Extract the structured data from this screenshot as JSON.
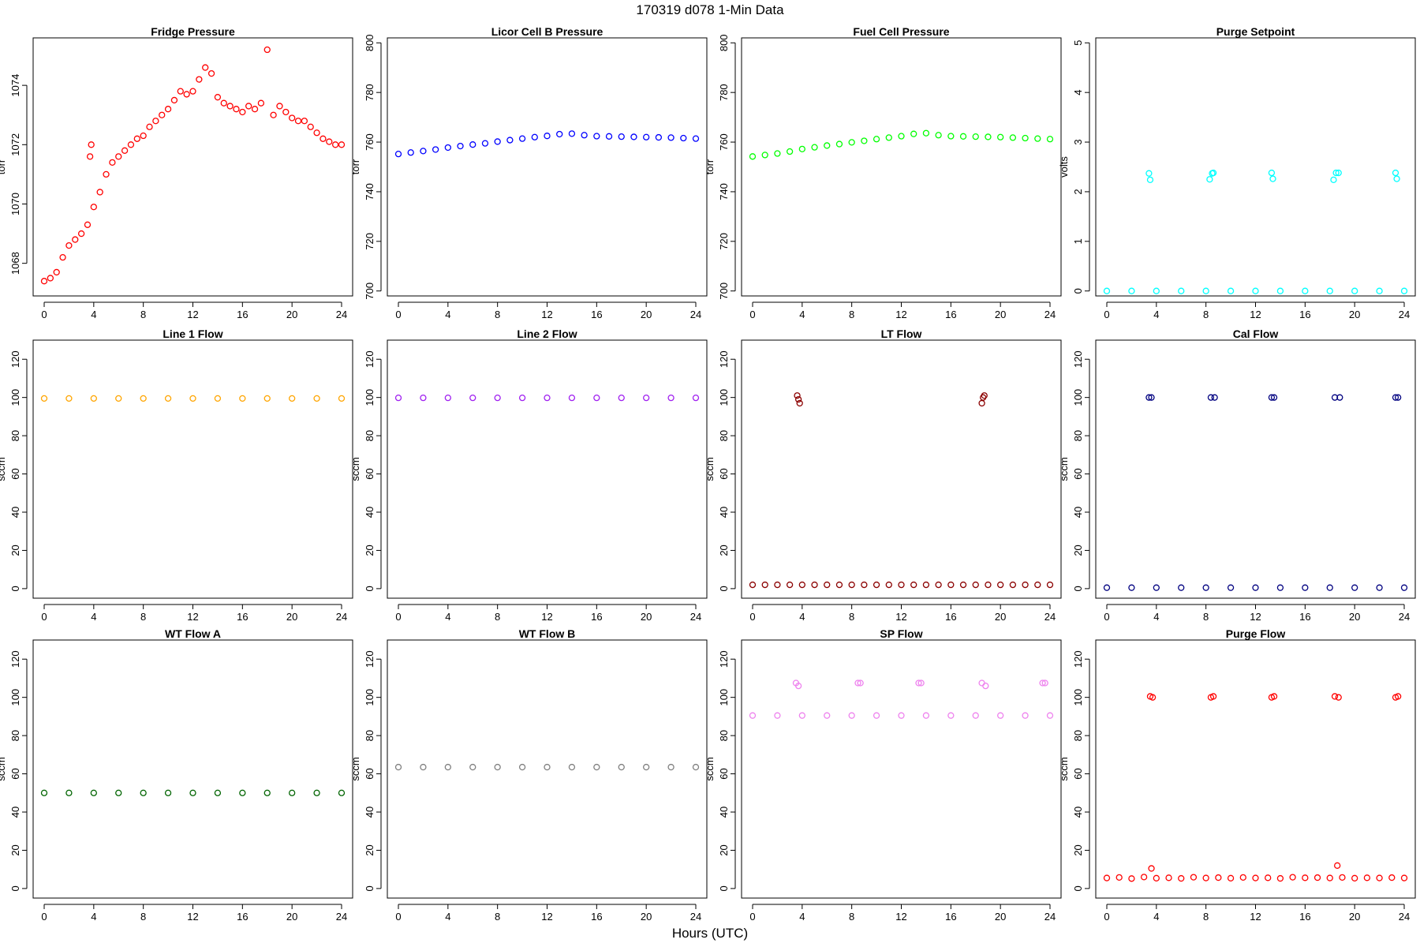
{
  "figure": {
    "title": "170319    d078    1-Min Data",
    "xlabel": "Hours (UTC)"
  },
  "chart_data": [
    {
      "type": "scatter",
      "title": "Fridge Pressure",
      "ylabel": "torr",
      "color": "#ff0000",
      "marker": "open-circle",
      "xlim": [
        0,
        24
      ],
      "ylim": [
        1066.9,
        1075.6
      ],
      "xticks": [
        0,
        4,
        8,
        12,
        16,
        20,
        24
      ],
      "yticks": [
        1068,
        1070,
        1072,
        1074
      ],
      "series": [
        {
          "x": [
            0,
            0.5,
            1,
            1.5,
            2,
            2.5,
            3,
            3.5,
            3.7,
            3.8,
            4,
            4.5,
            5,
            5.5,
            6,
            6.5,
            7,
            7.5,
            8,
            8.5,
            9,
            9.5,
            10,
            10.5,
            11,
            11.5,
            12,
            12.5,
            13,
            13.5,
            14,
            14.5,
            15,
            15.5,
            16,
            16.5,
            17,
            17.5,
            18,
            18.5,
            19,
            19.5,
            20,
            20.5,
            21,
            21.5,
            22,
            22.5,
            23,
            23.5,
            24
          ],
          "y": [
            1067.4,
            1067.5,
            1067.7,
            1068.2,
            1068.6,
            1068.8,
            1069.0,
            1069.3,
            1071.6,
            1072.0,
            1069.9,
            1070.4,
            1071.0,
            1071.4,
            1071.6,
            1071.8,
            1072.0,
            1072.2,
            1072.3,
            1072.6,
            1072.8,
            1073.0,
            1073.2,
            1073.5,
            1073.8,
            1073.7,
            1073.8,
            1074.2,
            1074.6,
            1074.4,
            1073.6,
            1073.4,
            1073.3,
            1073.2,
            1073.1,
            1073.3,
            1073.2,
            1073.4,
            1075.2,
            1073.0,
            1073.3,
            1073.1,
            1072.9,
            1072.8,
            1072.8,
            1072.6,
            1072.4,
            1072.2,
            1072.1,
            1072.0,
            1072.0
          ]
        }
      ]
    },
    {
      "type": "scatter",
      "title": "Licor Cell B Pressure",
      "ylabel": "torr",
      "color": "#0000ff",
      "marker": "open-circle",
      "xlim": [
        0,
        24
      ],
      "ylim": [
        698,
        802
      ],
      "xticks": [
        0,
        4,
        8,
        12,
        16,
        20,
        24
      ],
      "yticks": [
        700,
        720,
        740,
        760,
        780,
        800
      ],
      "series": [
        {
          "x": [
            0,
            1,
            2,
            3,
            4,
            5,
            6,
            7,
            8,
            9,
            10,
            11,
            12,
            13,
            14,
            15,
            16,
            17,
            18,
            19,
            20,
            21,
            22,
            23,
            24
          ],
          "y": [
            755.2,
            755.8,
            756.4,
            757.0,
            757.8,
            758.4,
            759.0,
            759.5,
            760.2,
            760.8,
            761.4,
            762.0,
            762.5,
            763.2,
            763.4,
            762.8,
            762.4,
            762.3,
            762.2,
            762.1,
            762.0,
            761.9,
            761.8,
            761.6,
            761.4
          ]
        }
      ]
    },
    {
      "type": "scatter",
      "title": "Fuel Cell Pressure",
      "ylabel": "torr",
      "color": "#00ff00",
      "marker": "open-circle",
      "xlim": [
        0,
        24
      ],
      "ylim": [
        698,
        802
      ],
      "xticks": [
        0,
        4,
        8,
        12,
        16,
        20,
        24
      ],
      "yticks": [
        700,
        720,
        740,
        760,
        780,
        800
      ],
      "series": [
        {
          "x": [
            0,
            1,
            2,
            3,
            4,
            5,
            6,
            7,
            8,
            9,
            10,
            11,
            12,
            13,
            14,
            15,
            16,
            17,
            18,
            19,
            20,
            21,
            22,
            23,
            24
          ],
          "y": [
            754.2,
            754.8,
            755.4,
            756.2,
            757.2,
            757.9,
            758.6,
            759.2,
            759.9,
            760.5,
            761.2,
            761.8,
            762.4,
            763.3,
            763.6,
            762.8,
            762.4,
            762.3,
            762.2,
            762.1,
            762.0,
            761.8,
            761.6,
            761.4,
            761.2
          ]
        }
      ]
    },
    {
      "type": "scatter",
      "title": "Purge Setpoint",
      "ylabel": "volts",
      "color": "#00ffff",
      "marker": "open-circle",
      "xlim": [
        0,
        24
      ],
      "ylim": [
        -0.1,
        5.1
      ],
      "xticks": [
        0,
        4,
        8,
        12,
        16,
        20,
        24
      ],
      "yticks": [
        0,
        1,
        2,
        3,
        4,
        5
      ],
      "series": [
        {
          "x": [
            0,
            2,
            4,
            6,
            8,
            10,
            12,
            14,
            16,
            18,
            20,
            22,
            24,
            3.4,
            3.5,
            8.3,
            8.5,
            8.6,
            13.3,
            13.4,
            18.3,
            18.5,
            18.7,
            23.3,
            23.4
          ],
          "y": [
            0,
            0,
            0,
            0,
            0,
            0,
            0,
            0,
            0,
            0,
            0,
            0,
            0,
            2.37,
            2.24,
            2.25,
            2.37,
            2.38,
            2.38,
            2.26,
            2.24,
            2.38,
            2.38,
            2.38,
            2.26
          ]
        }
      ]
    },
    {
      "type": "scatter",
      "title": "Line 1 Flow",
      "ylabel": "sccm",
      "color": "#ffa500",
      "marker": "open-circle",
      "xlim": [
        0,
        24
      ],
      "ylim": [
        -5,
        130
      ],
      "xticks": [
        0,
        4,
        8,
        12,
        16,
        20,
        24
      ],
      "yticks": [
        0,
        20,
        40,
        60,
        80,
        100,
        120
      ],
      "series": [
        {
          "x": [
            0,
            2,
            4,
            6,
            8,
            10,
            12,
            14,
            16,
            18,
            20,
            22,
            24
          ],
          "y": [
            99.5,
            99.5,
            99.5,
            99.5,
            99.5,
            99.5,
            99.5,
            99.5,
            99.5,
            99.5,
            99.5,
            99.5,
            99.5
          ]
        }
      ]
    },
    {
      "type": "scatter",
      "title": "Line 2 Flow",
      "ylabel": "sccm",
      "color": "#a020f0",
      "marker": "open-circle",
      "xlim": [
        0,
        24
      ],
      "ylim": [
        -5,
        130
      ],
      "xticks": [
        0,
        4,
        8,
        12,
        16,
        20,
        24
      ],
      "yticks": [
        0,
        20,
        40,
        60,
        80,
        100,
        120
      ],
      "series": [
        {
          "x": [
            0,
            2,
            4,
            6,
            8,
            10,
            12,
            14,
            16,
            18,
            20,
            22,
            24
          ],
          "y": [
            99.8,
            99.8,
            99.8,
            99.8,
            99.8,
            99.8,
            99.8,
            99.8,
            99.8,
            99.8,
            99.8,
            99.8,
            99.8
          ]
        }
      ]
    },
    {
      "type": "scatter",
      "title": "LT Flow",
      "ylabel": "sccm",
      "color": "#8b0000",
      "marker": "open-circle",
      "xlim": [
        0,
        24
      ],
      "ylim": [
        -5,
        130
      ],
      "xticks": [
        0,
        4,
        8,
        12,
        16,
        20,
        24
      ],
      "yticks": [
        0,
        20,
        40,
        60,
        80,
        100,
        120
      ],
      "series": [
        {
          "x": [
            0,
            1,
            2,
            3,
            4,
            5,
            6,
            7,
            8,
            9,
            10,
            11,
            12,
            13,
            14,
            15,
            16,
            17,
            18,
            19,
            20,
            21,
            22,
            23,
            24,
            3.6,
            3.7,
            3.8,
            18.5,
            18.6,
            18.7
          ],
          "y": [
            2,
            2,
            2,
            2,
            2,
            2,
            2,
            2,
            2,
            2,
            2,
            2,
            2,
            2,
            2,
            2,
            2,
            2,
            2,
            2,
            2,
            2,
            2,
            2,
            2,
            101,
            99,
            97,
            97,
            100,
            101
          ]
        }
      ]
    },
    {
      "type": "scatter",
      "title": "Cal Flow",
      "ylabel": "sccm",
      "color": "#000080",
      "marker": "open-circle",
      "xlim": [
        0,
        24
      ],
      "ylim": [
        -5,
        130
      ],
      "xticks": [
        0,
        4,
        8,
        12,
        16,
        20,
        24
      ],
      "yticks": [
        0,
        20,
        40,
        60,
        80,
        100,
        120
      ],
      "series": [
        {
          "x": [
            0,
            2,
            4,
            6,
            8,
            10,
            12,
            14,
            16,
            18,
            20,
            22,
            24,
            3.4,
            3.6,
            8.4,
            8.7,
            13.3,
            13.5,
            18.4,
            18.8,
            23.3,
            23.5
          ],
          "y": [
            0.5,
            0.5,
            0.5,
            0.5,
            0.5,
            0.5,
            0.5,
            0.5,
            0.5,
            0.5,
            0.5,
            0.5,
            0.5,
            100,
            100,
            100,
            100,
            100,
            100,
            100,
            100,
            100,
            100
          ]
        }
      ]
    },
    {
      "type": "scatter",
      "title": "WT Flow A",
      "ylabel": "sccm",
      "color": "#006400",
      "marker": "open-circle",
      "xlim": [
        0,
        24
      ],
      "ylim": [
        -5,
        130
      ],
      "xticks": [
        0,
        4,
        8,
        12,
        16,
        20,
        24
      ],
      "yticks": [
        0,
        20,
        40,
        60,
        80,
        100,
        120
      ],
      "series": [
        {
          "x": [
            0,
            2,
            4,
            6,
            8,
            10,
            12,
            14,
            16,
            18,
            20,
            22,
            24
          ],
          "y": [
            50,
            50,
            50,
            50,
            50,
            50,
            50,
            50,
            50,
            50,
            50,
            50,
            50
          ]
        }
      ]
    },
    {
      "type": "scatter",
      "title": "WT Flow B",
      "ylabel": "sccm",
      "color": "#808080",
      "marker": "open-circle",
      "xlim": [
        0,
        24
      ],
      "ylim": [
        -5,
        130
      ],
      "xticks": [
        0,
        4,
        8,
        12,
        16,
        20,
        24
      ],
      "yticks": [
        0,
        20,
        40,
        60,
        80,
        100,
        120
      ],
      "series": [
        {
          "x": [
            0,
            2,
            4,
            6,
            8,
            10,
            12,
            14,
            16,
            18,
            20,
            22,
            24
          ],
          "y": [
            63.5,
            63.5,
            63.5,
            63.5,
            63.5,
            63.5,
            63.5,
            63.5,
            63.5,
            63.5,
            63.5,
            63.5,
            63.5
          ]
        }
      ]
    },
    {
      "type": "scatter",
      "title": "SP Flow",
      "ylabel": "sccm",
      "color": "#ee82ee",
      "marker": "open-circle",
      "xlim": [
        0,
        24
      ],
      "ylim": [
        -5,
        130
      ],
      "xticks": [
        0,
        4,
        8,
        12,
        16,
        20,
        24
      ],
      "yticks": [
        0,
        20,
        40,
        60,
        80,
        100,
        120
      ],
      "series": [
        {
          "x": [
            0,
            2,
            4,
            6,
            8,
            10,
            12,
            14,
            16,
            18,
            20,
            22,
            24,
            3.5,
            3.7,
            8.5,
            8.7,
            13.4,
            13.6,
            18.5,
            18.8,
            23.4,
            23.6
          ],
          "y": [
            90.5,
            90.5,
            90.5,
            90.5,
            90.5,
            90.5,
            90.5,
            90.5,
            90.5,
            90.5,
            90.5,
            90.5,
            90.5,
            107.5,
            106,
            107.5,
            107.5,
            107.5,
            107.5,
            107.5,
            106,
            107.5,
            107.5
          ]
        }
      ]
    },
    {
      "type": "scatter",
      "title": "Purge Flow",
      "ylabel": "sccm",
      "color": "#ff0000",
      "marker": "open-circle",
      "xlim": [
        0,
        24
      ],
      "ylim": [
        -5,
        130
      ],
      "xticks": [
        0,
        4,
        8,
        12,
        16,
        20,
        24
      ],
      "yticks": [
        0,
        20,
        40,
        60,
        80,
        100,
        120
      ],
      "series": [
        {
          "x": [
            0,
            1,
            2,
            3,
            4,
            5,
            6,
            7,
            8,
            9,
            10,
            11,
            12,
            13,
            14,
            15,
            16,
            17,
            18,
            19,
            20,
            21,
            22,
            23,
            24,
            3.5,
            3.7,
            8.4,
            8.6,
            13.3,
            13.5,
            18.4,
            18.7,
            23.3,
            23.5,
            3.6,
            18.6
          ],
          "y": [
            5.5,
            5.8,
            5.2,
            6.0,
            5.4,
            5.6,
            5.3,
            5.9,
            5.5,
            5.7,
            5.4,
            5.8,
            5.5,
            5.6,
            5.3,
            5.9,
            5.6,
            5.7,
            5.5,
            5.8,
            5.4,
            5.6,
            5.5,
            5.7,
            5.5,
            100.5,
            100,
            100,
            100.5,
            100,
            100.5,
            100.5,
            100,
            100,
            100.5,
            10.5,
            12
          ]
        }
      ]
    }
  ]
}
